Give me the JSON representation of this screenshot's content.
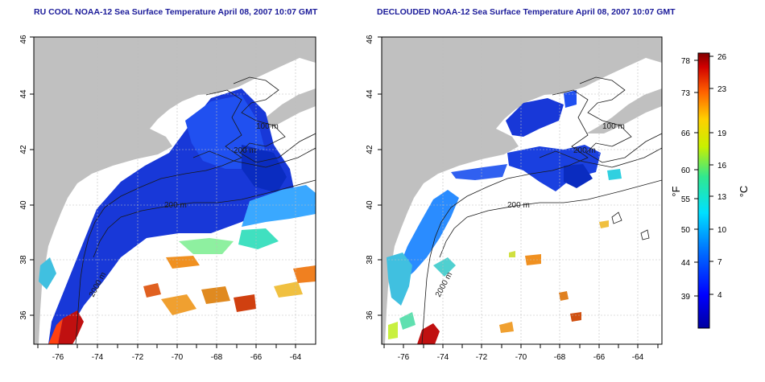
{
  "panels": [
    {
      "title": "RU COOL NOAA-12 Sea Surface Temperature April 08, 2007 10:07 GMT",
      "contour_labels": [
        "100 m",
        "200 m",
        "200 m",
        "2000 m"
      ]
    },
    {
      "title": "DECLOUDED NOAA-12 Sea Surface Temperature April 08, 2007 10:07 GMT",
      "contour_labels": [
        "100 m",
        "200 m",
        "200 m",
        "2000 m"
      ]
    }
  ],
  "axes": {
    "lon_ticks": [
      "-76",
      "-74",
      "-72",
      "-70",
      "-68",
      "-66",
      "-64"
    ],
    "lat_ticks": [
      "36",
      "38",
      "40",
      "42",
      "44",
      "46"
    ]
  },
  "colorbar": {
    "f_label": "°F",
    "c_label": "°C",
    "f_ticks": [
      "78",
      "73",
      "66",
      "60",
      "55",
      "50",
      "44",
      "39"
    ],
    "c_ticks": [
      "26",
      "23",
      "19",
      "16",
      "13",
      "10",
      "7",
      "4"
    ]
  },
  "colors": {
    "land": "#c0c0c0",
    "grid": "#bdbdbd",
    "title": "#1a1a99",
    "cold": "#1e3fd0",
    "warm": "#c01010"
  }
}
